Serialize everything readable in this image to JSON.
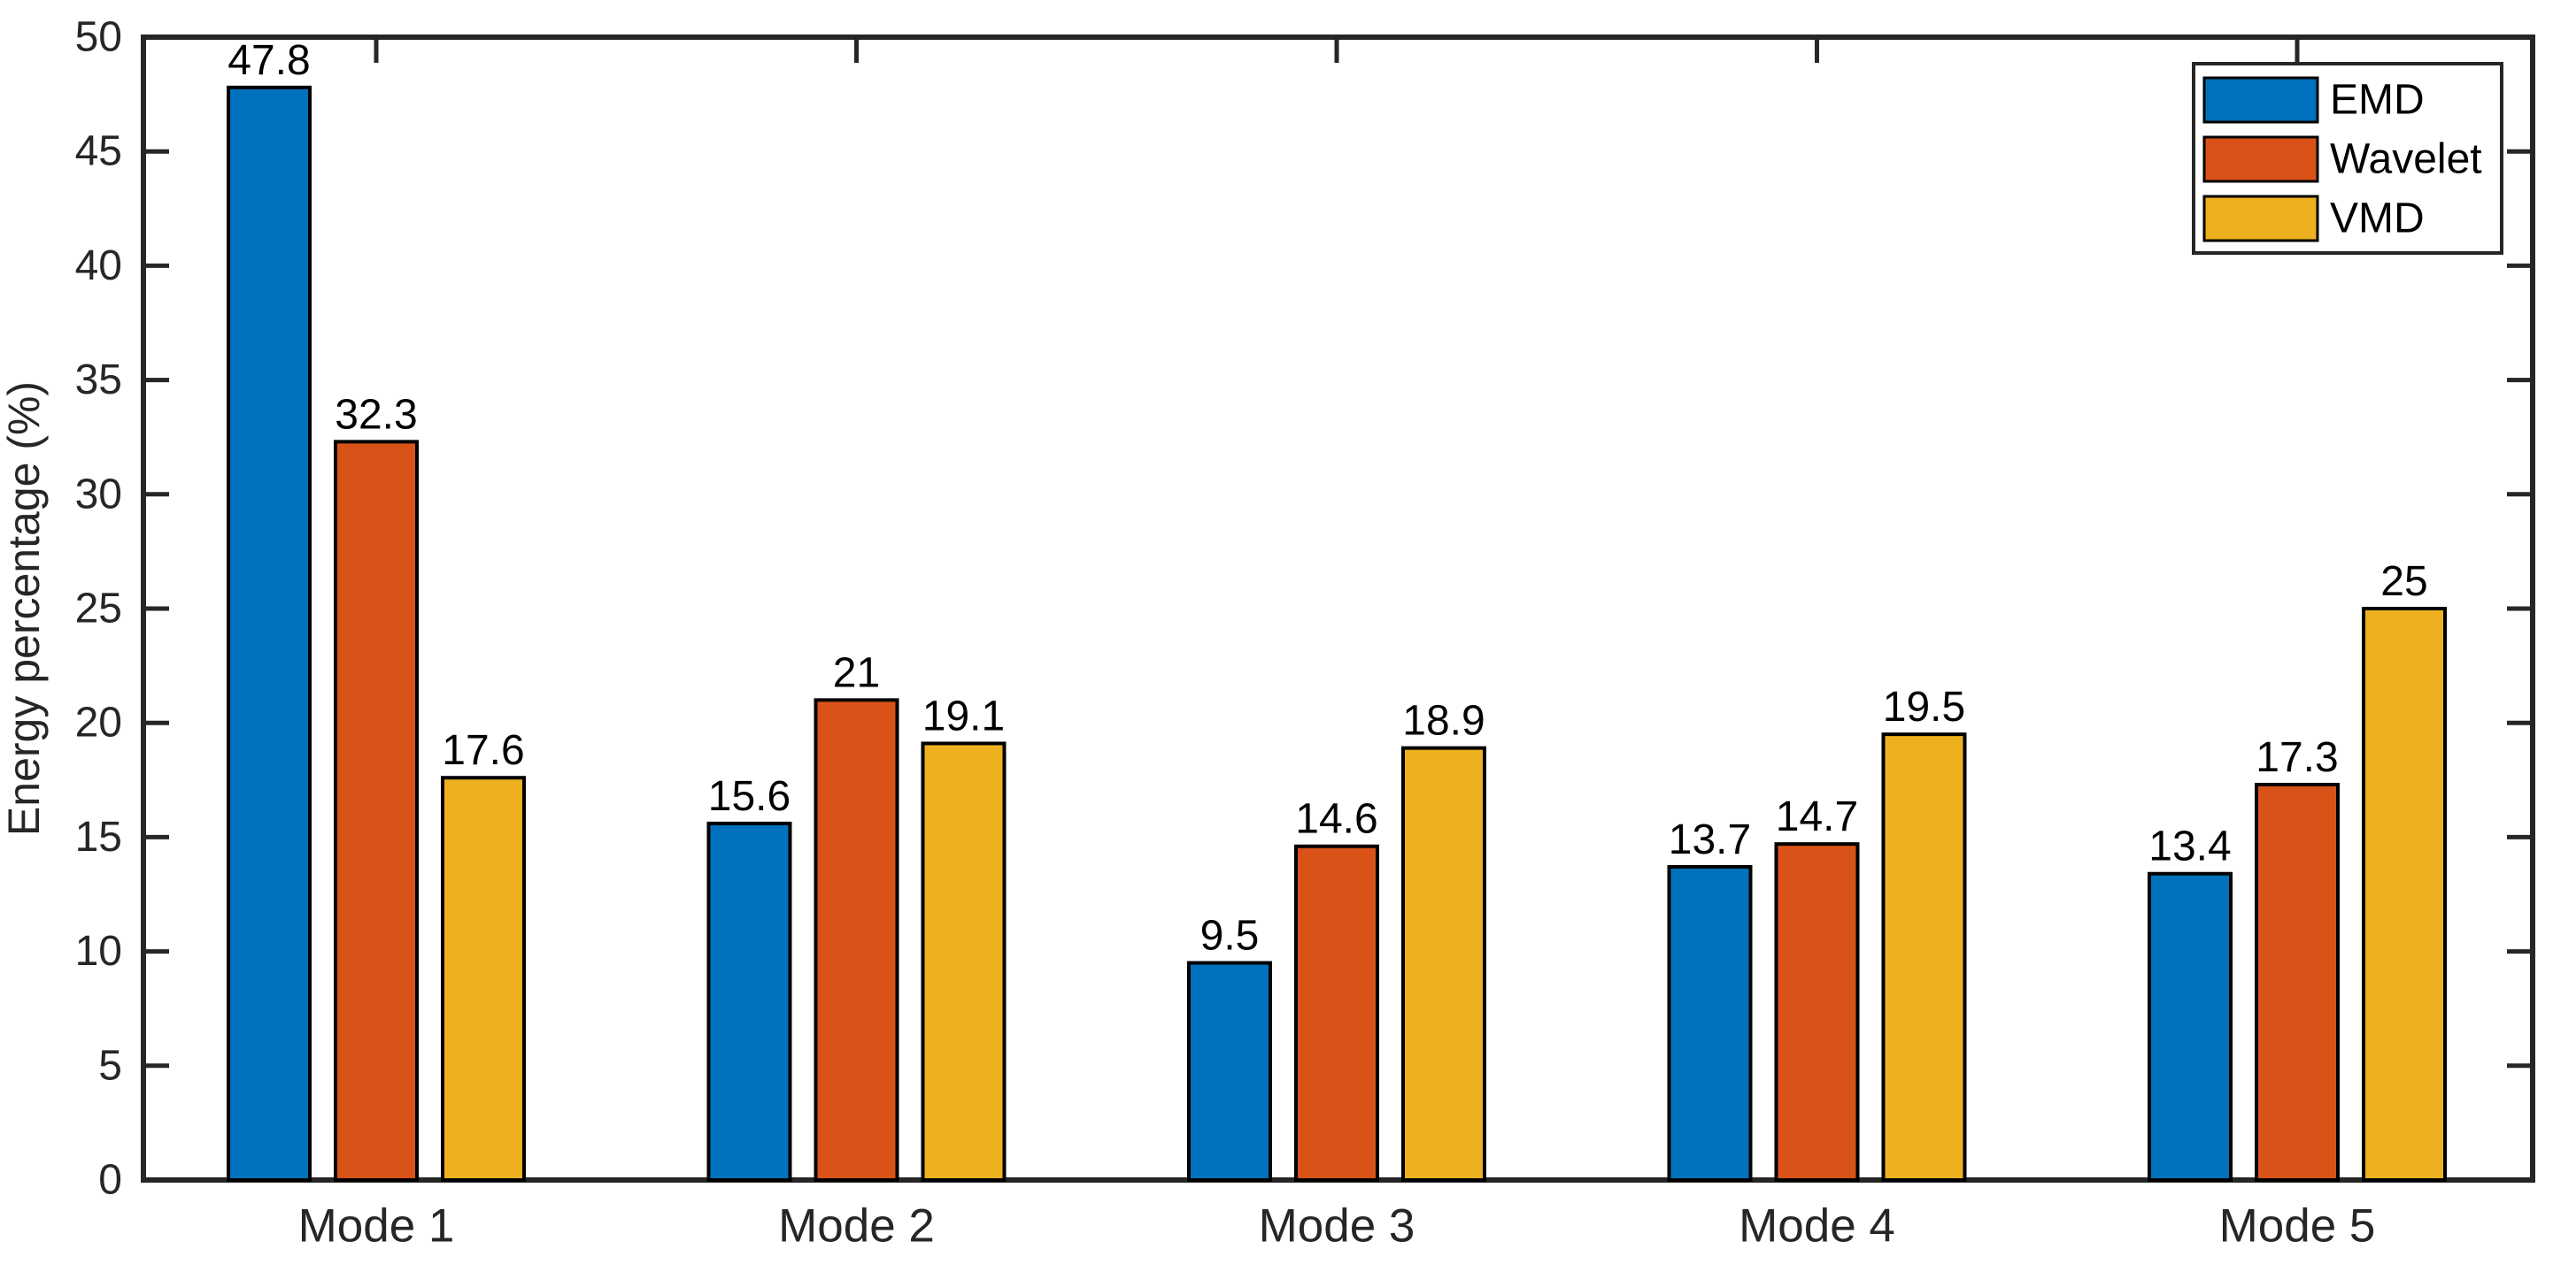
{
  "figure": {
    "background": "#ffffff"
  },
  "chart_data": {
    "type": "bar",
    "title": "",
    "xlabel": "",
    "ylabel": "Energy percentage (%)",
    "categories": [
      "Mode 1",
      "Mode 2",
      "Mode 3",
      "Mode 4",
      "Mode 5"
    ],
    "series": [
      {
        "name": "EMD",
        "color": "#0072BD",
        "values": [
          47.8,
          15.6,
          9.5,
          13.7,
          13.4
        ]
      },
      {
        "name": "Wavelet",
        "color": "#D95319",
        "values": [
          32.3,
          21,
          14.6,
          14.7,
          17.3
        ]
      },
      {
        "name": "VMD",
        "color": "#EDB120",
        "values": [
          17.6,
          19.1,
          18.9,
          19.5,
          25
        ]
      }
    ],
    "ylim": [
      0,
      50
    ],
    "ytick_step": 5,
    "ytick_labels": [
      "0",
      "5",
      "10",
      "15",
      "20",
      "25",
      "30",
      "35",
      "40",
      "45",
      "50"
    ],
    "grid": false,
    "bar_value_labels": true,
    "legend": {
      "position": "top-right",
      "entries": [
        "EMD",
        "Wavelet",
        "VMD"
      ]
    },
    "axis_color": "#262626",
    "bar_edge_color": "#000000"
  }
}
